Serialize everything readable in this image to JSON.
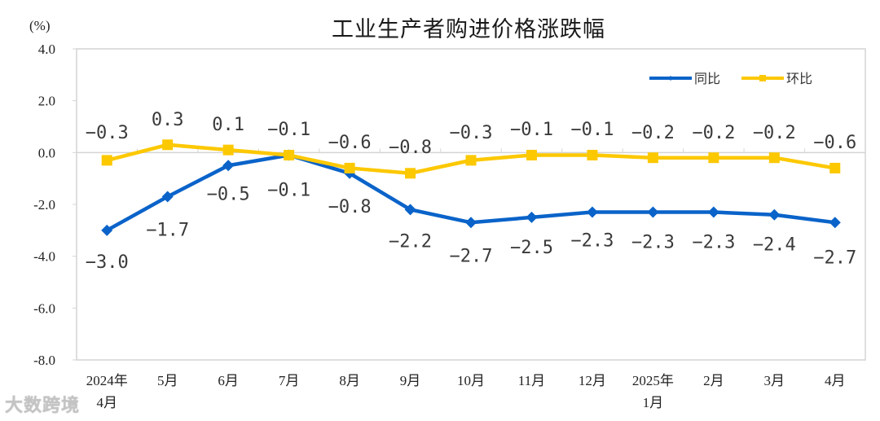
{
  "chart_data": {
    "type": "line",
    "title": "工业生产者购进价格涨跌幅",
    "ylabel": "(%)",
    "xlabel": "",
    "ylim": [
      -8.0,
      4.0
    ],
    "yticks": [
      "4.0",
      "2.0",
      "0.0",
      "-2.0",
      "-4.0",
      "-6.0",
      "-8.0"
    ],
    "ytick_values": [
      4,
      2,
      0,
      -2,
      -4,
      -6,
      -8
    ],
    "categories": [
      "2024年4月",
      "5月",
      "6月",
      "7月",
      "8月",
      "9月",
      "10月",
      "11月",
      "12月",
      "2025年1月",
      "2月",
      "3月",
      "4月"
    ],
    "category_lines": [
      [
        "2024年",
        "4月"
      ],
      [
        "5月"
      ],
      [
        "6月"
      ],
      [
        "7月"
      ],
      [
        "8月"
      ],
      [
        "9月"
      ],
      [
        "10月"
      ],
      [
        "11月"
      ],
      [
        "12月"
      ],
      [
        "2025年",
        "1月"
      ],
      [
        "2月"
      ],
      [
        "3月"
      ],
      [
        "4月"
      ]
    ],
    "series": [
      {
        "name": "同比",
        "color": "#0a63c9",
        "marker": "diamond",
        "values": [
          -3.0,
          -1.7,
          -0.5,
          -0.1,
          -0.8,
          -2.2,
          -2.7,
          -2.5,
          -2.3,
          -2.3,
          -2.3,
          -2.4,
          -2.7
        ],
        "labels": [
          "−3.0",
          "−1.7",
          "−0.5",
          "−0.1",
          "−0.8",
          "−2.2",
          "−2.7",
          "−2.5",
          "−2.3",
          "−2.3",
          "−2.3",
          "−2.4",
          "−2.7"
        ]
      },
      {
        "name": "环比",
        "color": "#fcc800",
        "marker": "square",
        "values": [
          -0.3,
          0.3,
          0.1,
          -0.1,
          -0.6,
          -0.8,
          -0.3,
          -0.1,
          -0.1,
          -0.2,
          -0.2,
          -0.2,
          -0.6
        ],
        "labels": [
          "−0.3",
          "0.3",
          "0.1",
          "−0.1",
          "−0.6",
          "−0.8",
          "−0.3",
          "−0.1",
          "−0.1",
          "−0.2",
          "−0.2",
          "−0.2",
          "−0.6"
        ]
      }
    ],
    "legend_position": "top-right",
    "grid": false
  },
  "watermark": "大数跨境"
}
